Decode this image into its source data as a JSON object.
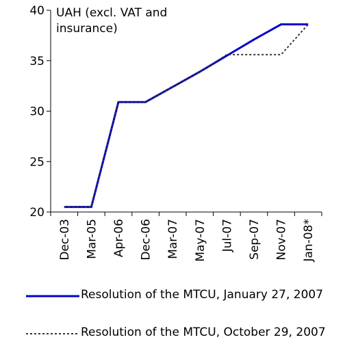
{
  "chart_data": {
    "type": "line",
    "annotation": "UAH (excl. VAT and insurance)",
    "categories": [
      "Dec-03",
      "Mar-05",
      "Apr-06",
      "Dec-06",
      "Mar-07",
      "May-07",
      "Jul-07",
      "Sep-07",
      "Nov-07",
      "Jan-08*"
    ],
    "series": [
      {
        "name": "Resolution of the MTCU, January 27, 2007",
        "color": "#0000cc",
        "values": [
          20.5,
          20.5,
          30.9,
          30.9,
          32.4,
          33.9,
          35.5,
          37.1,
          38.6,
          38.6
        ]
      },
      {
        "name": "Resolution of the MTCU, October 29, 2007",
        "color": "#333333",
        "values": [
          20.5,
          20.5,
          30.9,
          30.9,
          32.4,
          33.9,
          35.6,
          35.6,
          35.6,
          38.6
        ]
      }
    ],
    "ylim": [
      20,
      40
    ],
    "yticks": [
      20,
      25,
      30,
      35,
      40
    ],
    "grid": false
  }
}
